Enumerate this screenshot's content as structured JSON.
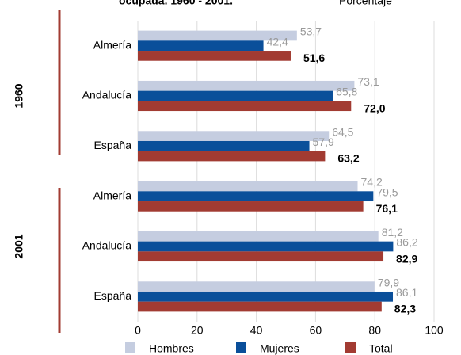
{
  "chart_data": {
    "type": "bar",
    "orientation": "horizontal",
    "title": "ocupada. 1960 - 2001.",
    "subtitle": "Porcentaje",
    "categories": [
      "Almería",
      "Andalucía",
      "España",
      "Almería",
      "Andalucía",
      "España"
    ],
    "groups": [
      "1960",
      "2001"
    ],
    "series": [
      {
        "name": "Hombres",
        "color": "#c5cde0",
        "values": [
          53.7,
          73.1,
          64.5,
          74.2,
          81.2,
          79.9
        ],
        "value_labels": [
          "53,7",
          "73,1",
          "64,5",
          "74,2",
          "81,2",
          "79,9"
        ]
      },
      {
        "name": "Mujeres",
        "color": "#0a4f9a",
        "values": [
          42.4,
          65.8,
          57.9,
          79.5,
          86.2,
          86.1
        ],
        "value_labels": [
          "42,4",
          "65,8",
          "57,9",
          "79,5",
          "86,2",
          "86,1"
        ]
      },
      {
        "name": "Total",
        "color": "#a23b32",
        "values": [
          51.6,
          72.0,
          63.2,
          76.1,
          82.9,
          82.3
        ],
        "value_labels": [
          "51,6",
          "72,0",
          "63,2",
          "76,1",
          "82,9",
          "82,3"
        ]
      }
    ],
    "xlim": [
      0,
      100
    ],
    "xticks": [
      0,
      20,
      40,
      60,
      80,
      100
    ],
    "grid": true,
    "legend": "bottom"
  }
}
